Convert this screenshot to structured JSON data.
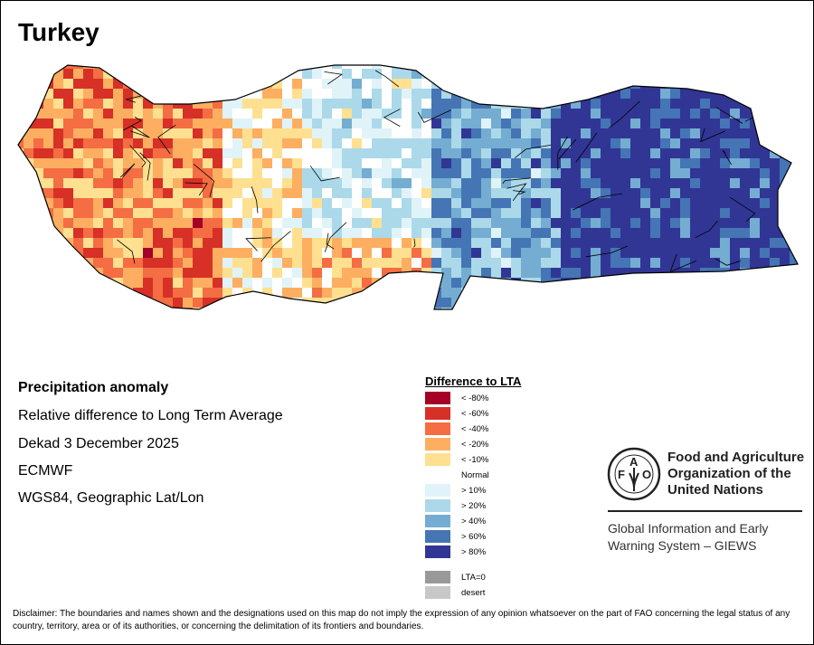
{
  "title": "Turkey",
  "info": {
    "heading": "Precipitation anomaly",
    "line1": "Relative difference to Long Term Average",
    "line2": "Dekad 3 December 2025",
    "line3": "ECMWF",
    "line4": "WGS84, Geographic Lat/Lon"
  },
  "legend": {
    "title": "Difference to LTA",
    "items": [
      {
        "label": "< -80%",
        "color": "#a50026"
      },
      {
        "label": "< -60%",
        "color": "#d73027"
      },
      {
        "label": "< -40%",
        "color": "#f46d43"
      },
      {
        "label": "< -20%",
        "color": "#fdae61"
      },
      {
        "label": "< -10%",
        "color": "#fee090"
      },
      {
        "label": "Normal",
        "color": "#ffffff"
      },
      {
        "label": "> 10%",
        "color": "#e0f3f8"
      },
      {
        "label": "> 20%",
        "color": "#abd9e9"
      },
      {
        "label": "> 40%",
        "color": "#74add1"
      },
      {
        "label": "> 60%",
        "color": "#4575b4"
      },
      {
        "label": "> 80%",
        "color": "#313695"
      },
      {
        "label": "LTA=0",
        "color": "#999999"
      },
      {
        "label": "desert",
        "color": "#c8c8c8"
      }
    ]
  },
  "fao": {
    "logo_text": "FAO FIAT PANIS",
    "name_line1": "Food and Agriculture",
    "name_line2": "Organization of the",
    "name_line3": "United Nations",
    "giews_line1": "Global Information and Early",
    "giews_line2": "Warning System – GIEWS"
  },
  "disclaimer": "Disclaimer: The boundaries and names shown and the designations used on this map do not imply the expression of any opinion whatsoever on the part of FAO concerning the legal status of any country, territory, area or of its authorities, or concerning the delimitation of its frontiers and boundaries."
}
